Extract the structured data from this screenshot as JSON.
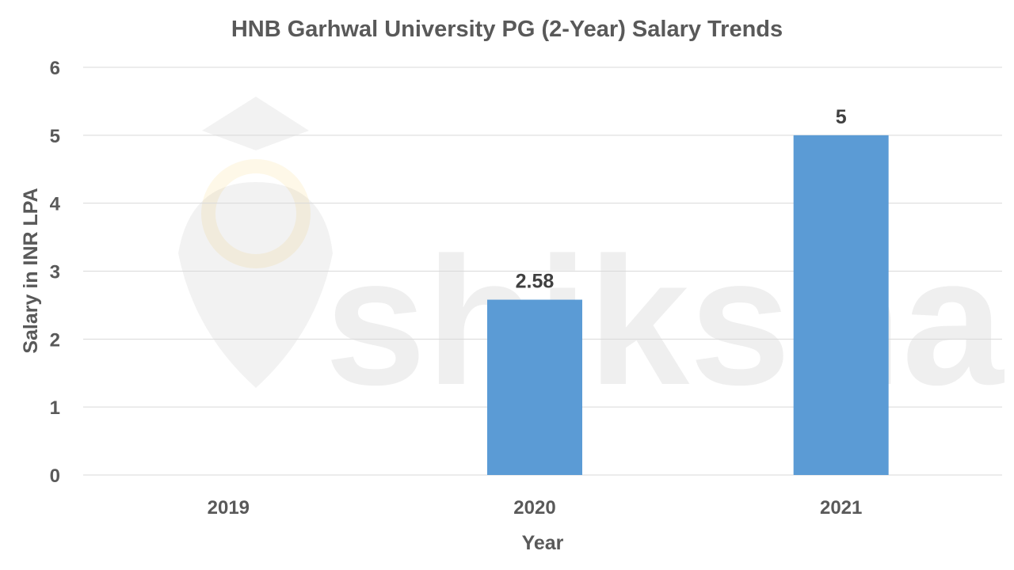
{
  "chart_data": {
    "type": "bar",
    "title": "HNB Garhwal University PG (2-Year) Salary Trends",
    "xlabel": "Year",
    "ylabel": "Salary in INR LPA",
    "categories": [
      "2019",
      "2020",
      "2021"
    ],
    "values": [
      null,
      2.58,
      5
    ],
    "data_labels": [
      "",
      "2.58",
      "5"
    ],
    "ylim": [
      0,
      6
    ],
    "yticks": [
      "0",
      "1",
      "2",
      "3",
      "4",
      "5",
      "6"
    ],
    "grid": true,
    "bar_color": "#5b9bd5",
    "legend": "none"
  },
  "watermark": "shiksha"
}
